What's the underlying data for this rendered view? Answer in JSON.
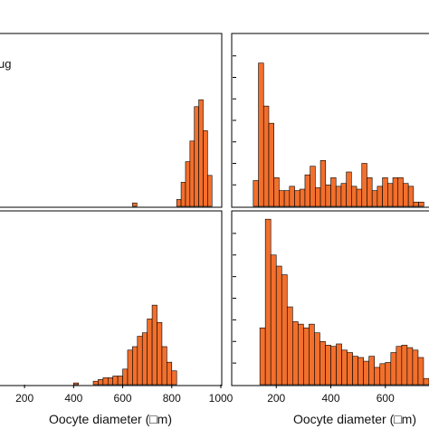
{
  "bar_color": "#f26f2c",
  "bar_stroke": "#000000",
  "chart_data": [
    {
      "type": "bar",
      "panel": "top-left",
      "panel_label": "ug",
      "xlim": [
        0,
        1000
      ],
      "bin_width": 20,
      "x": [
        600,
        800,
        820,
        840,
        860,
        880,
        900,
        920,
        940
      ],
      "values": [
        2,
        4,
        14,
        26,
        38,
        58,
        62,
        44,
        18
      ],
      "ylim": [
        0,
        100
      ]
    },
    {
      "type": "bar",
      "panel": "top-right",
      "xlim": [
        0,
        760
      ],
      "bin_width": 20,
      "x": [
        80,
        100,
        120,
        140,
        160,
        180,
        200,
        220,
        240,
        260,
        280,
        300,
        320,
        340,
        360,
        380,
        400,
        420,
        440,
        460,
        480,
        500,
        520,
        540,
        560,
        580,
        600,
        620,
        640,
        660,
        680,
        700,
        720
      ],
      "values": [
        18,
        100,
        70,
        58,
        20,
        11,
        11,
        14,
        11,
        12,
        22,
        28,
        13,
        32,
        15,
        20,
        14,
        16,
        24,
        14,
        12,
        30,
        20,
        11,
        14,
        20,
        16,
        20,
        20,
        16,
        14,
        3,
        3
      ],
      "ylim": [
        0,
        120
      ]
    },
    {
      "type": "bar",
      "panel": "bottom-left",
      "xlim": [
        100,
        1000
      ],
      "tick_labels": [
        "200",
        "400",
        "600",
        "800",
        "1000"
      ],
      "xlabel": "Oocyte diameter (□m)",
      "bin_width": 20,
      "x": [
        400,
        480,
        500,
        520,
        540,
        560,
        580,
        600,
        620,
        640,
        660,
        680,
        700,
        720,
        740,
        760,
        780,
        800
      ],
      "values": [
        1,
        2,
        3,
        4,
        4,
        5,
        5,
        9,
        20,
        22,
        28,
        30,
        38,
        46,
        36,
        22,
        13,
        8
      ],
      "ylim": [
        0,
        100
      ]
    },
    {
      "type": "bar",
      "panel": "bottom-right",
      "xlim": [
        40,
        760
      ],
      "tick_labels": [
        "200",
        "400",
        "600"
      ],
      "xlabel": "Oocyte diameter (□m)",
      "bin_width": 20,
      "x": [
        140,
        160,
        180,
        200,
        220,
        240,
        260,
        280,
        300,
        320,
        340,
        360,
        380,
        400,
        420,
        440,
        460,
        480,
        500,
        520,
        540,
        560,
        580,
        600,
        620,
        640,
        660,
        680,
        700,
        720,
        740
      ],
      "values": [
        46,
        134,
        105,
        96,
        89,
        63,
        51,
        49,
        46,
        49,
        42,
        35,
        32,
        31,
        33,
        28,
        26,
        23,
        22,
        19,
        23,
        14,
        17,
        18,
        26,
        31,
        32,
        30,
        28,
        22,
        5
      ],
      "ylim": [
        0,
        140
      ]
    }
  ]
}
